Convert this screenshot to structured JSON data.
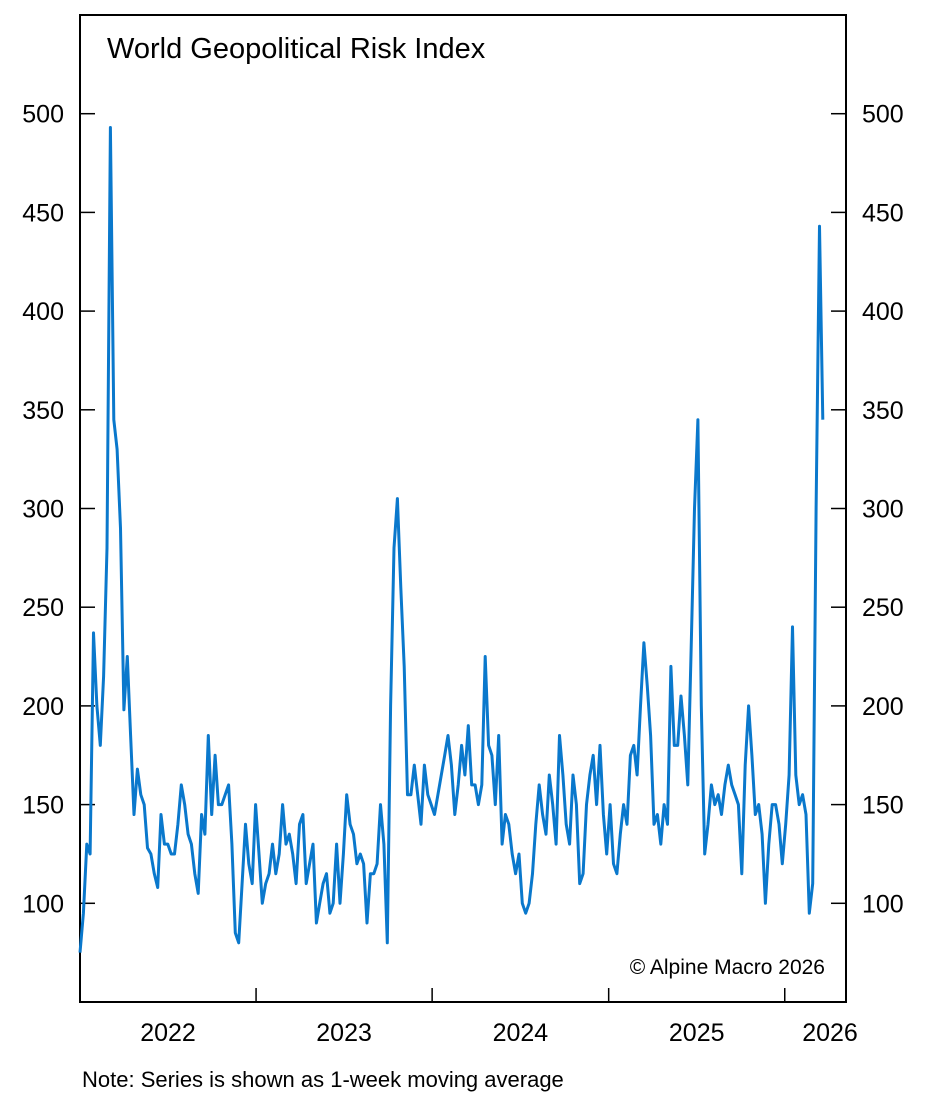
{
  "chart_data": {
    "type": "line",
    "title": "World Geopolitical Risk Index",
    "xlabel": "",
    "ylabel": "",
    "ylim": [
      50,
      550
    ],
    "xlim": [
      "2022-01-01",
      "2026-05-08"
    ],
    "yticks": [
      100,
      150,
      200,
      250,
      300,
      350,
      400,
      450,
      500
    ],
    "ytick_labels": [
      "100",
      "150",
      "200",
      "250",
      "300",
      "350",
      "400",
      "450",
      "500"
    ],
    "y_axis_both_sides": true,
    "xtick_boundaries": [
      "2023-01-01",
      "2024-01-01",
      "2025-01-01",
      "2026-01-01"
    ],
    "xtick_labels": [
      "2022",
      "2023",
      "2024",
      "2025",
      "2026"
    ],
    "grid": false,
    "legend": "none",
    "line_color": "#0a78cc",
    "annotation": "© Alpine Macro 2026",
    "note": "Note: Series is shown as 1-week moving average",
    "x": [
      "2022-01-01",
      "2022-01-08",
      "2022-01-15",
      "2022-01-22",
      "2022-01-29",
      "2022-02-05",
      "2022-02-12",
      "2022-02-19",
      "2022-02-26",
      "2022-03-05",
      "2022-03-12",
      "2022-03-19",
      "2022-03-26",
      "2022-04-02",
      "2022-04-09",
      "2022-04-16",
      "2022-04-23",
      "2022-04-30",
      "2022-05-07",
      "2022-05-14",
      "2022-05-21",
      "2022-05-28",
      "2022-06-04",
      "2022-06-11",
      "2022-06-18",
      "2022-06-25",
      "2022-07-02",
      "2022-07-09",
      "2022-07-16",
      "2022-07-23",
      "2022-07-30",
      "2022-08-06",
      "2022-08-13",
      "2022-08-20",
      "2022-08-27",
      "2022-09-03",
      "2022-09-10",
      "2022-09-17",
      "2022-09-24",
      "2022-10-01",
      "2022-10-08",
      "2022-10-15",
      "2022-10-22",
      "2022-10-29",
      "2022-11-05",
      "2022-11-12",
      "2022-11-19",
      "2022-11-26",
      "2022-12-03",
      "2022-12-10",
      "2022-12-17",
      "2022-12-24",
      "2022-12-31",
      "2023-01-07",
      "2023-01-14",
      "2023-01-21",
      "2023-01-28",
      "2023-02-04",
      "2023-02-11",
      "2023-02-18",
      "2023-02-25",
      "2023-03-04",
      "2023-03-11",
      "2023-03-18",
      "2023-03-25",
      "2023-04-01",
      "2023-04-08",
      "2023-04-15",
      "2023-04-22",
      "2023-04-29",
      "2023-05-06",
      "2023-05-13",
      "2023-05-20",
      "2023-05-27",
      "2023-06-03",
      "2023-06-10",
      "2023-06-17",
      "2023-06-24",
      "2023-07-01",
      "2023-07-08",
      "2023-07-15",
      "2023-07-22",
      "2023-07-29",
      "2023-08-05",
      "2023-08-12",
      "2023-08-19",
      "2023-08-26",
      "2023-09-02",
      "2023-09-09",
      "2023-09-16",
      "2023-09-23",
      "2023-09-30",
      "2023-10-07",
      "2023-10-14",
      "2023-10-21",
      "2023-10-28",
      "2023-11-04",
      "2023-11-11",
      "2023-11-18",
      "2023-11-25",
      "2023-12-02",
      "2023-12-09",
      "2023-12-16",
      "2023-12-23",
      "2023-12-30",
      "2024-01-06",
      "2024-01-13",
      "2024-01-20",
      "2024-01-27",
      "2024-02-03",
      "2024-02-10",
      "2024-02-17",
      "2024-02-24",
      "2024-03-02",
      "2024-03-09",
      "2024-03-16",
      "2024-03-23",
      "2024-03-30",
      "2024-04-06",
      "2024-04-13",
      "2024-04-20",
      "2024-04-27",
      "2024-05-04",
      "2024-05-11",
      "2024-05-18",
      "2024-05-25",
      "2024-06-01",
      "2024-06-08",
      "2024-06-15",
      "2024-06-22",
      "2024-06-29",
      "2024-07-06",
      "2024-07-13",
      "2024-07-20",
      "2024-07-27",
      "2024-08-03",
      "2024-08-10",
      "2024-08-17",
      "2024-08-24",
      "2024-08-31",
      "2024-09-07",
      "2024-09-14",
      "2024-09-21",
      "2024-09-28",
      "2024-10-05",
      "2024-10-12",
      "2024-10-19",
      "2024-10-26",
      "2024-11-02",
      "2024-11-09",
      "2024-11-16",
      "2024-11-23",
      "2024-11-30",
      "2024-12-07",
      "2024-12-14",
      "2024-12-21",
      "2024-12-28",
      "2025-01-04",
      "2025-01-11",
      "2025-01-18",
      "2025-01-25",
      "2025-02-01",
      "2025-02-08",
      "2025-02-15",
      "2025-02-22",
      "2025-03-01",
      "2025-03-08",
      "2025-03-15",
      "2025-03-22",
      "2025-03-29",
      "2025-04-05",
      "2025-04-12",
      "2025-04-19",
      "2025-04-26",
      "2025-05-03",
      "2025-05-10",
      "2025-05-17",
      "2025-05-24",
      "2025-05-31",
      "2025-06-07",
      "2025-06-14",
      "2025-06-21",
      "2025-06-28",
      "2025-07-05",
      "2025-07-12",
      "2025-07-19",
      "2025-07-26",
      "2025-08-02",
      "2025-08-09",
      "2025-08-16",
      "2025-08-23",
      "2025-08-30",
      "2025-09-06",
      "2025-09-13",
      "2025-09-20",
      "2025-09-27",
      "2025-10-04",
      "2025-10-11",
      "2025-10-18",
      "2025-10-25",
      "2025-11-01",
      "2025-11-08",
      "2025-11-15",
      "2025-11-22",
      "2025-11-29",
      "2025-12-06",
      "2025-12-13",
      "2025-12-20",
      "2025-12-27",
      "2026-01-03",
      "2026-01-10",
      "2026-01-17",
      "2026-01-24",
      "2026-01-31",
      "2026-02-07",
      "2026-02-14",
      "2026-02-21",
      "2026-02-28",
      "2026-03-07",
      "2026-03-14",
      "2026-03-21"
    ],
    "y": [
      75,
      95,
      130,
      125,
      237,
      200,
      180,
      215,
      280,
      493,
      345,
      330,
      290,
      198,
      225,
      185,
      145,
      168,
      155,
      150,
      128,
      125,
      115,
      108,
      145,
      130,
      130,
      125,
      125,
      140,
      160,
      150,
      135,
      130,
      115,
      105,
      145,
      135,
      185,
      145,
      175,
      150,
      150,
      155,
      160,
      130,
      85,
      80,
      110,
      140,
      120,
      110,
      150,
      125,
      100,
      110,
      115,
      130,
      115,
      125,
      150,
      130,
      135,
      125,
      110,
      140,
      145,
      110,
      120,
      130,
      90,
      100,
      110,
      115,
      95,
      100,
      130,
      100,
      125,
      155,
      140,
      135,
      120,
      125,
      120,
      90,
      115,
      115,
      120,
      150,
      130,
      80,
      200,
      280,
      305,
      260,
      220,
      155,
      155,
      170,
      155,
      140,
      170,
      155,
      150,
      145,
      155,
      165,
      175,
      185,
      170,
      145,
      160,
      180,
      165,
      190,
      160,
      160,
      150,
      160,
      225,
      180,
      175,
      150,
      185,
      130,
      145,
      140,
      125,
      115,
      125,
      100,
      95,
      100,
      115,
      140,
      160,
      145,
      135,
      165,
      150,
      130,
      185,
      165,
      140,
      130,
      165,
      150,
      110,
      115,
      150,
      165,
      175,
      150,
      180,
      145,
      125,
      150,
      120,
      115,
      135,
      150,
      140,
      175,
      180,
      165,
      200,
      232,
      210,
      185,
      140,
      145,
      130,
      150,
      140,
      220,
      180,
      180,
      205,
      185,
      160,
      230,
      300,
      345,
      200,
      125,
      140,
      160,
      150,
      155,
      145,
      160,
      170,
      160,
      155,
      150,
      115,
      170,
      200,
      175,
      145,
      150,
      135,
      100,
      130,
      150,
      150,
      140,
      120,
      140,
      165,
      240,
      165,
      150,
      155,
      145,
      95,
      110,
      300,
      443,
      345
    ]
  }
}
